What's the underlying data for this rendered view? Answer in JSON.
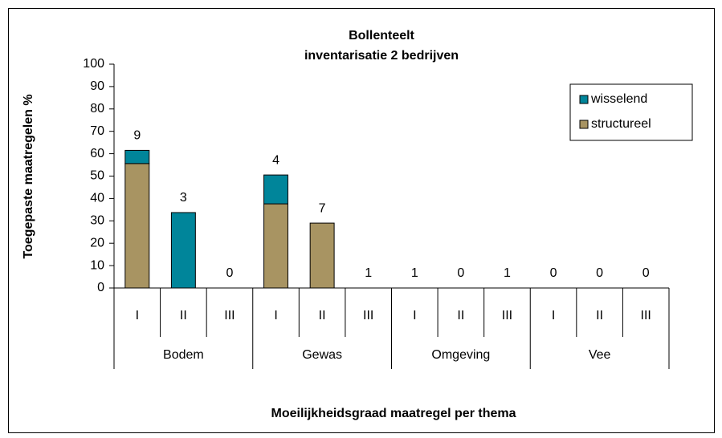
{
  "chart_data": {
    "type": "stacked_bar",
    "title": "Bollenteelt",
    "subtitle": "inventarisatie 2 bedrijven",
    "y_label": "Toegepaste maatregelen %",
    "x_label": "Moeilijkheidsgraad maatregel per thema",
    "categories": [
      "I",
      "II",
      "III",
      "I",
      "II",
      "III",
      "I",
      "II",
      "III",
      "I",
      "II",
      "III"
    ],
    "groups": [
      "Bodem",
      "Gewas",
      "Omgeving",
      "Vee"
    ],
    "series": [
      {
        "name": "structureel",
        "color": "#a89462",
        "values": [
          55.6,
          0,
          0,
          37.6,
          29,
          0,
          0,
          0,
          0,
          0,
          0,
          0
        ]
      },
      {
        "name": "wisselend",
        "color": "#00859a",
        "values": [
          5.9,
          33.7,
          0,
          12.9,
          0,
          0,
          0,
          0,
          0,
          0,
          0,
          0
        ]
      }
    ],
    "counts": [
      9,
      3,
      0,
      4,
      7,
      1,
      1,
      0,
      1,
      0,
      0,
      0
    ],
    "ylim": [
      0,
      100
    ],
    "yticks": [
      0,
      10,
      20,
      30,
      40,
      50,
      60,
      70,
      80,
      90,
      100
    ],
    "legend": "top-right"
  }
}
